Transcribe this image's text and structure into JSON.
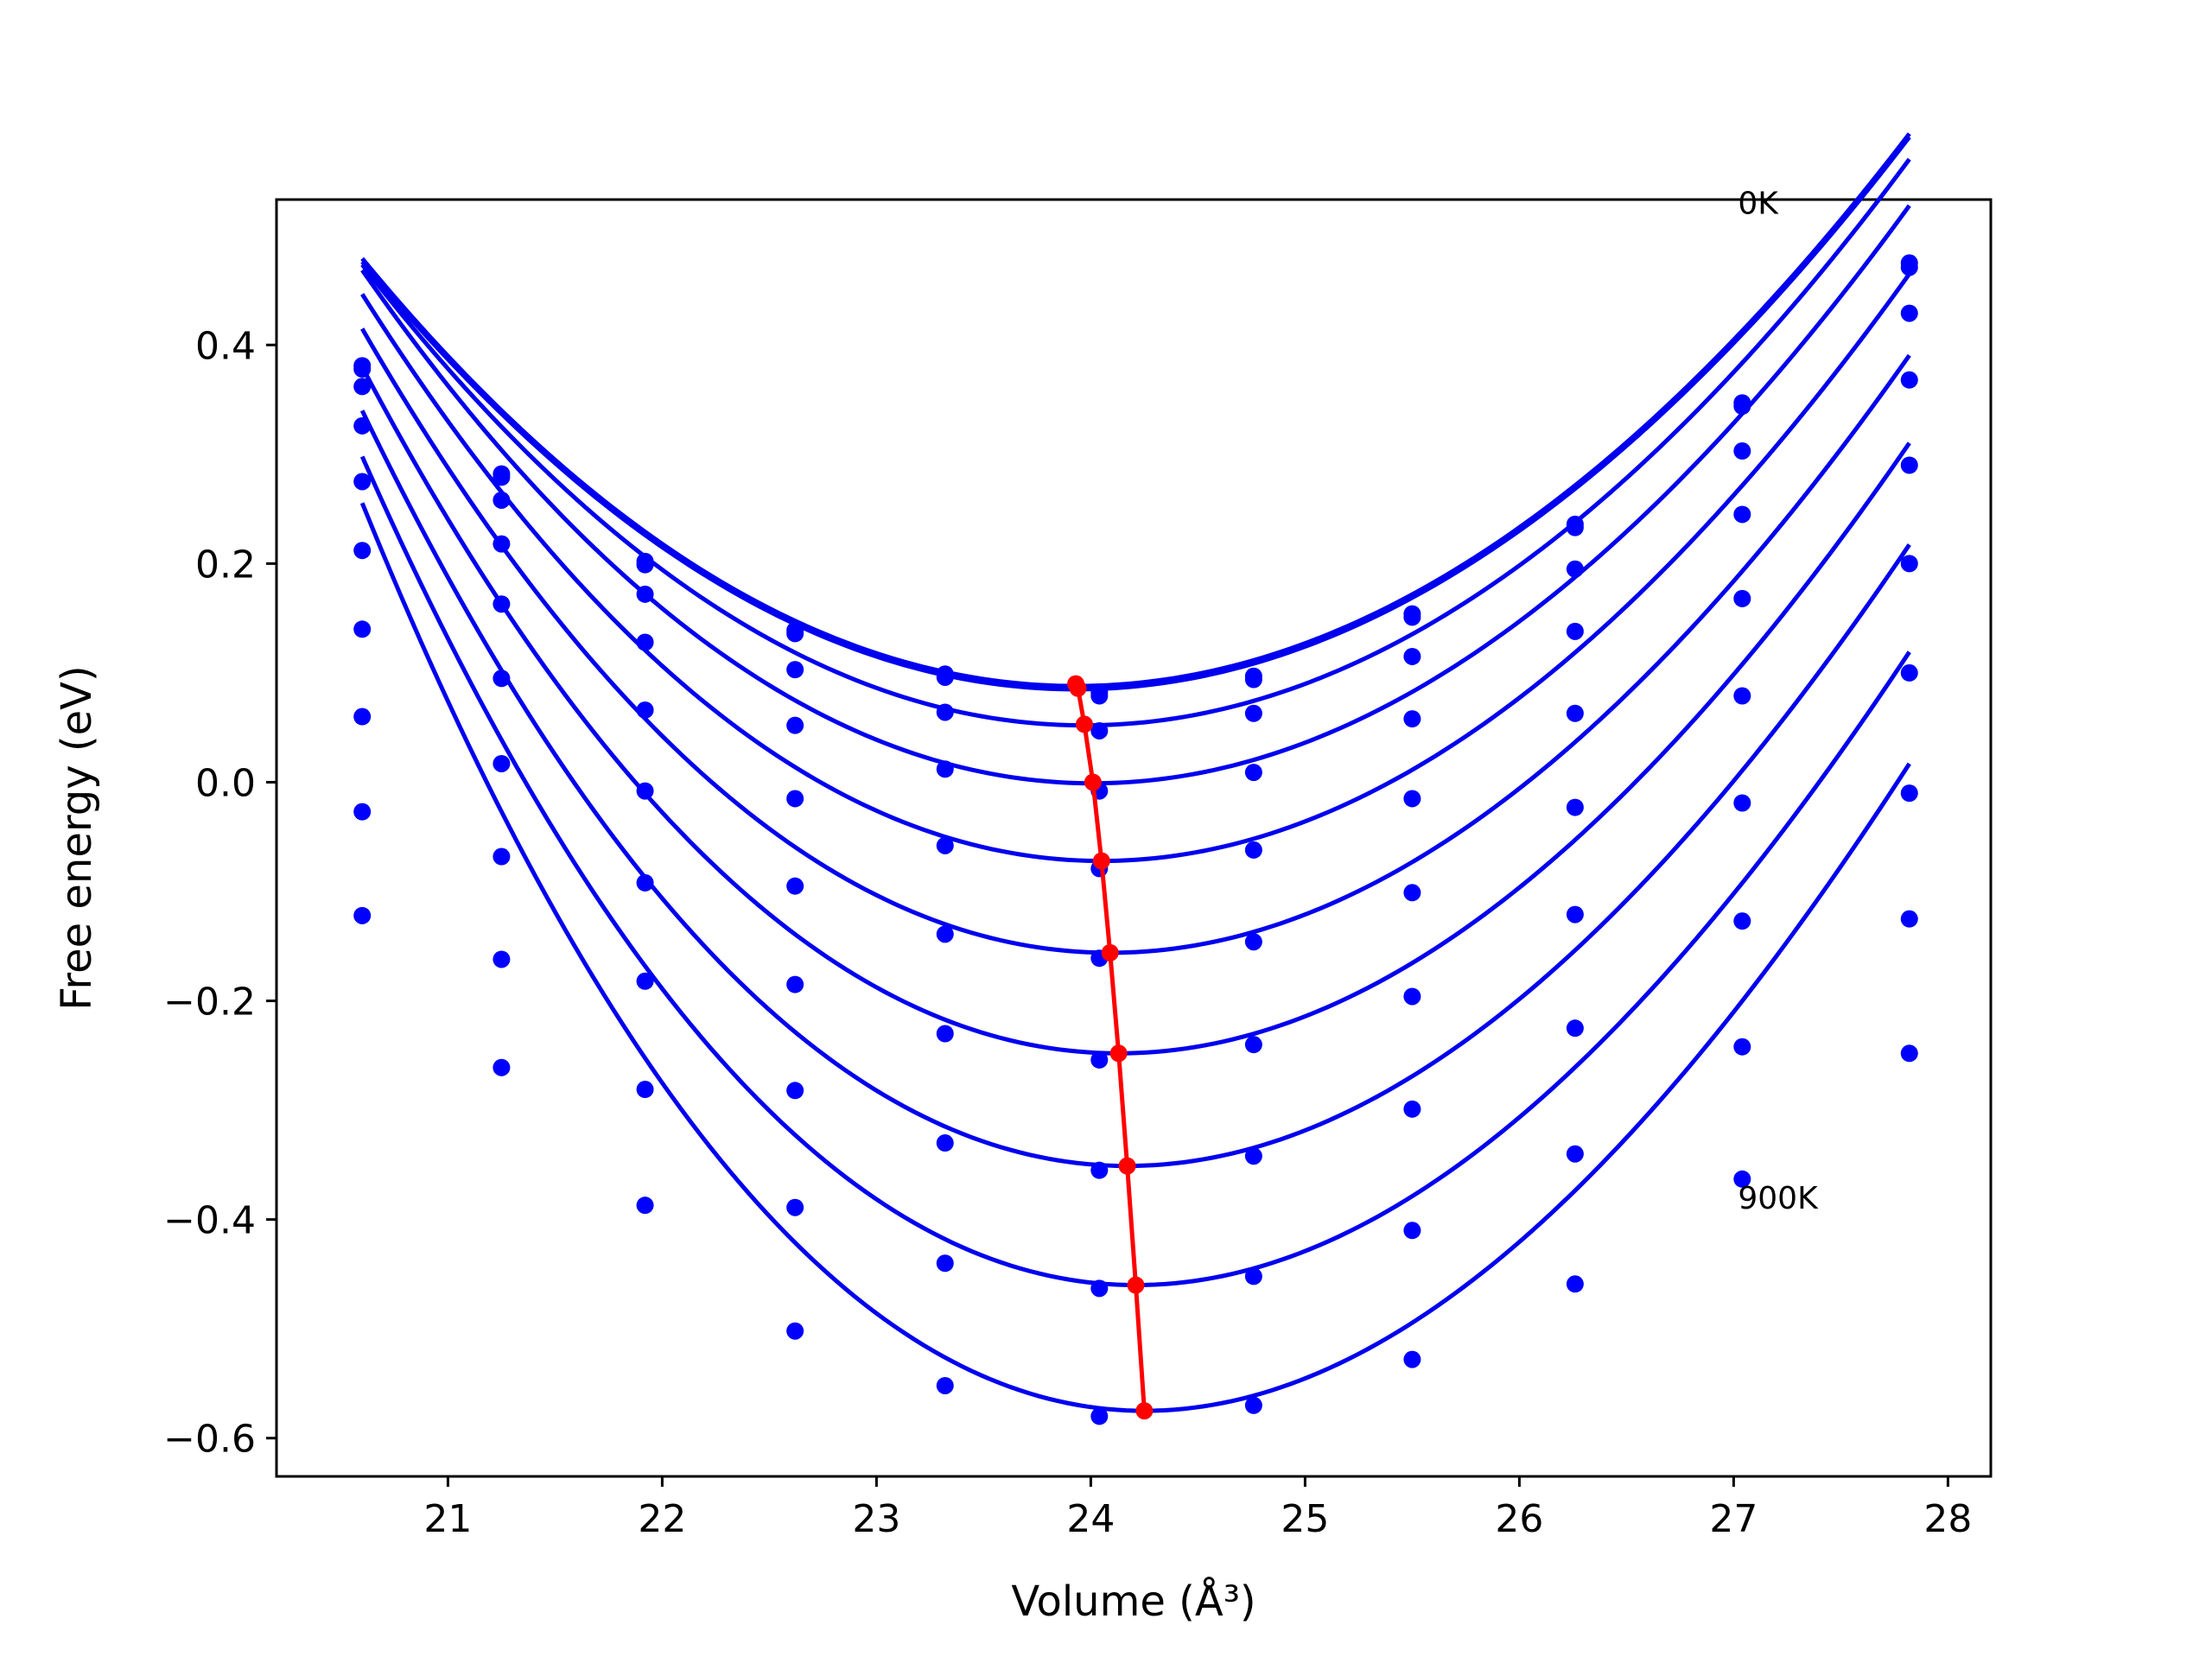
{
  "chart_data": {
    "type": "line",
    "title": "",
    "xlabel": "Volume (Å³)",
    "ylabel": "Free energy (eV)",
    "xlim": [
      20.2,
      28.2
    ],
    "ylim": [
      -0.635,
      0.533
    ],
    "xticks": [
      21,
      22,
      23,
      24,
      25,
      26,
      27,
      28
    ],
    "yticks": [
      -0.6,
      -0.4,
      -0.2,
      0.0,
      0.2,
      0.4
    ],
    "ytick_labels": [
      "−0.6",
      "−0.4",
      "−0.2",
      "0.0",
      "0.2",
      "0.4"
    ],
    "grid": false,
    "legend": "none",
    "annotations": [
      {
        "text": "0K",
        "x": 27.02,
        "y": 0.52
      },
      {
        "text": "900K",
        "x": 27.02,
        "y": -0.39
      }
    ],
    "x": [
      20.6,
      21.25,
      21.92,
      22.62,
      23.32,
      24.04,
      24.76,
      25.5,
      26.26,
      27.04,
      27.82
    ],
    "series": [
      {
        "values": [
          0.381,
          0.282,
          0.202,
          0.139,
          0.099,
          0.082,
          0.097,
          0.154,
          0.236,
          0.347,
          0.475
        ]
      },
      {
        "values": [
          0.378,
          0.279,
          0.199,
          0.136,
          0.096,
          0.079,
          0.094,
          0.151,
          0.233,
          0.344,
          0.471
        ]
      },
      {
        "values": [
          0.362,
          0.258,
          0.172,
          0.103,
          0.064,
          0.047,
          0.063,
          0.115,
          0.195,
          0.303,
          0.429
        ]
      },
      {
        "values": [
          0.326,
          0.218,
          0.128,
          0.052,
          0.012,
          -0.008,
          0.009,
          0.058,
          0.138,
          0.245,
          0.368
        ]
      },
      {
        "values": [
          0.275,
          0.163,
          0.066,
          -0.015,
          -0.058,
          -0.079,
          -0.062,
          -0.015,
          0.063,
          0.168,
          0.29
        ]
      },
      {
        "values": [
          0.212,
          0.095,
          -0.008,
          -0.095,
          -0.139,
          -0.161,
          -0.146,
          -0.101,
          -0.023,
          0.079,
          0.2
        ]
      },
      {
        "values": [
          0.14,
          0.017,
          -0.092,
          -0.185,
          -0.23,
          -0.254,
          -0.24,
          -0.196,
          -0.121,
          -0.019,
          0.1
        ]
      },
      {
        "values": [
          0.06,
          -0.068,
          -0.182,
          -0.282,
          -0.33,
          -0.355,
          -0.342,
          -0.299,
          -0.225,
          -0.127,
          -0.01
        ]
      },
      {
        "values": [
          -0.027,
          -0.162,
          -0.281,
          -0.389,
          -0.44,
          -0.463,
          -0.452,
          -0.41,
          -0.34,
          -0.242,
          -0.125
        ]
      },
      {
        "values": [
          -0.122,
          -0.261,
          -0.387,
          -0.502,
          -0.552,
          -0.58,
          -0.57,
          -0.528,
          -0.459,
          -0.363,
          -0.248
        ]
      }
    ],
    "fit_curves": [
      {
        "v0": 23.93,
        "e0": 0.088,
        "a": 0.0344,
        "b": 0.00026
      },
      {
        "v0": 23.93,
        "e0": 0.085,
        "a": 0.0344,
        "b": 0.00026
      },
      {
        "v0": 23.97,
        "e0": 0.052,
        "a": 0.0361,
        "b": 0.0003
      },
      {
        "v0": 24.01,
        "e0": -0.001,
        "a": 0.0385,
        "b": 0.00055
      },
      {
        "v0": 24.05,
        "e0": -0.072,
        "a": 0.0408,
        "b": 0.0008
      },
      {
        "v0": 24.09,
        "e0": -0.156,
        "a": 0.0432,
        "b": 0.00105
      },
      {
        "v0": 24.13,
        "e0": -0.248,
        "a": 0.0458,
        "b": 0.0013
      },
      {
        "v0": 24.17,
        "e0": -0.351,
        "a": 0.0485,
        "b": 0.0016
      },
      {
        "v0": 24.21,
        "e0": -0.46,
        "a": 0.0513,
        "b": 0.0019
      },
      {
        "v0": 24.25,
        "e0": -0.575,
        "a": 0.0543,
        "b": 0.0022
      }
    ],
    "minima": {
      "x": [
        23.93,
        23.94,
        23.97,
        24.01,
        24.05,
        24.09,
        24.13,
        24.17,
        24.21,
        24.25
      ],
      "y": [
        0.09,
        0.086,
        0.053,
        0.0,
        -0.072,
        -0.156,
        -0.248,
        -0.351,
        -0.46,
        -0.575
      ]
    },
    "colors": {
      "curves": "#0000ee",
      "points": "#0000ff",
      "minima": "#ff0000",
      "axes": "#000000"
    }
  }
}
